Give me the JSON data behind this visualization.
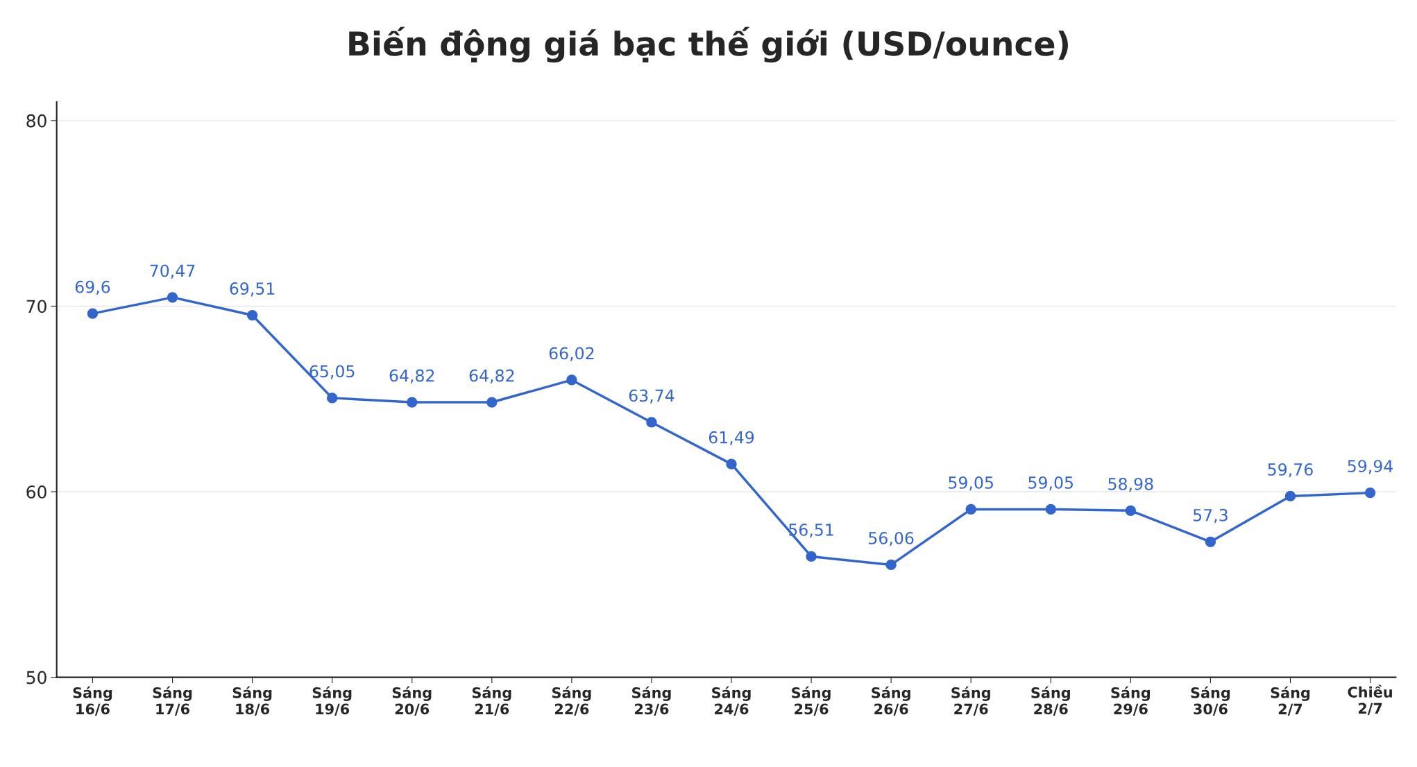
{
  "chart_data": {
    "type": "line",
    "title": "Biến động giá bạc thế giới (USD/ounce)",
    "categories": [
      "Sáng\n16/6",
      "Sáng\n17/6",
      "Sáng\n18/6",
      "Sáng\n19/6",
      "Sáng\n20/6",
      "Sáng\n21/6",
      "Sáng\n22/6",
      "Sáng\n23/6",
      "Sáng\n24/6",
      "Sáng\n25/6",
      "Sáng\n26/6",
      "Sáng\n27/6",
      "Sáng\n28/6",
      "Sáng\n29/6",
      "Sáng\n30/6",
      "Sáng\n2/7",
      "Chiều\n2/7"
    ],
    "series": [
      {
        "color": "#3366cc",
        "values": [
          69.6,
          70.47,
          69.51,
          65.05,
          64.82,
          64.82,
          66.02,
          63.74,
          61.49,
          56.51,
          56.06,
          59.05,
          59.05,
          58.98,
          57.3,
          59.76,
          59.94
        ],
        "value_labels": [
          "69,6",
          "70,47",
          "69,51",
          "65,05",
          "64,82",
          "64,82",
          "66,02",
          "63,74",
          "61,49",
          "56,51",
          "56,06",
          "59,05",
          "59,05",
          "58,98",
          "57,3",
          "59,76",
          "59,94"
        ]
      }
    ],
    "ylim": [
      50,
      81
    ],
    "yticks": [
      50,
      60,
      70,
      80
    ],
    "grid": "y",
    "legend": false,
    "marker": "circle",
    "line_style": "solid"
  }
}
